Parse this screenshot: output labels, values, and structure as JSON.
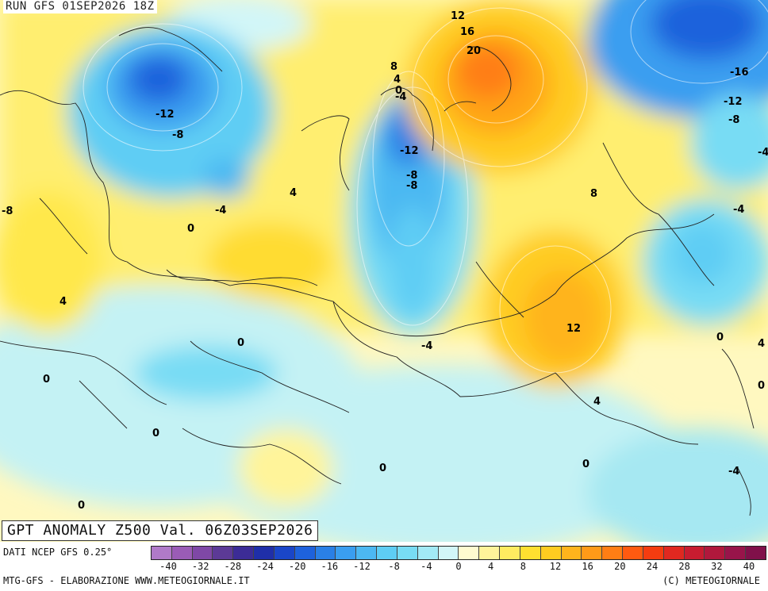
{
  "header": {
    "run_label": "RUN GFS 01SEP2026 18Z"
  },
  "title": "GPT ANOMALY Z500 Val. 06Z03SEP2026",
  "footer": {
    "source": "DATI NCEP GFS 0.25°",
    "credit": "MTG-GFS - ELABORAZIONE WWW.METEOGIORNALE.IT",
    "copyright": "(C) METEOGIORNALE"
  },
  "colorbar": {
    "colors": [
      "#b07ac8",
      "#9a5cb6",
      "#7f48a6",
      "#5c3a96",
      "#3c2c96",
      "#1f2fa8",
      "#1a46c8",
      "#1e62dc",
      "#2a80e6",
      "#3a9ef0",
      "#4cb8f2",
      "#5ecdf4",
      "#78dcf4",
      "#a2eaf6",
      "#d2f6f8",
      "#fffbd0",
      "#fff49a",
      "#ffec60",
      "#ffe030",
      "#ffcc20",
      "#ffb41c",
      "#ff9a18",
      "#ff7e14",
      "#ff5a10",
      "#f43c10",
      "#e02820",
      "#c81c30",
      "#b0183c",
      "#98144a",
      "#80104a"
    ],
    "tick_labels": [
      "-40",
      "-32",
      "-28",
      "-24",
      "-20",
      "-16",
      "-12",
      "-8",
      "-4",
      "0",
      "4",
      "8",
      "12",
      "16",
      "20",
      "24",
      "28",
      "32",
      "40"
    ]
  },
  "map_labels": [
    "12",
    "16",
    "20",
    "8",
    "4",
    "0",
    "-4",
    "-12",
    "-8",
    "-12",
    "-8",
    "-4",
    "0",
    "4",
    "-8",
    "-8",
    "-4",
    "4",
    "0",
    "8",
    "-16",
    "-12",
    "-8",
    "-4",
    "0",
    "4",
    "12",
    "4",
    "0",
    "-4",
    "0",
    "-4",
    "0",
    "0",
    "0",
    "0"
  ]
}
